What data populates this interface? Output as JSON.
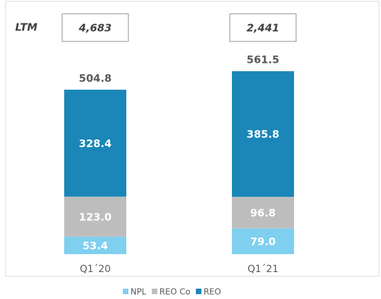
{
  "chart_data": {
    "type": "bar",
    "stacked": true,
    "categories": [
      "Q1´20",
      "Q1´21"
    ],
    "series": [
      {
        "name": "NPL",
        "color": "#7fcfee",
        "values": [
          53.4,
          79.0
        ],
        "value_labels": [
          "53.4",
          "79.0"
        ]
      },
      {
        "name": "REO Co",
        "color": "#bdbdbd",
        "values": [
          123.0,
          96.8
        ],
        "value_labels": [
          "123.0",
          "96.8"
        ]
      },
      {
        "name": "REO",
        "color": "#1a87b8",
        "values": [
          328.4,
          385.8
        ],
        "value_labels": [
          "328.4",
          "385.8"
        ]
      }
    ],
    "totals": [
      504.8,
      561.5
    ],
    "ltm": {
      "label": "LTM",
      "values": [
        4683,
        2441
      ],
      "value_labels": [
        "4,683",
        "2,441"
      ]
    },
    "ylim": [
      0,
      600
    ],
    "legend": "bottom"
  }
}
